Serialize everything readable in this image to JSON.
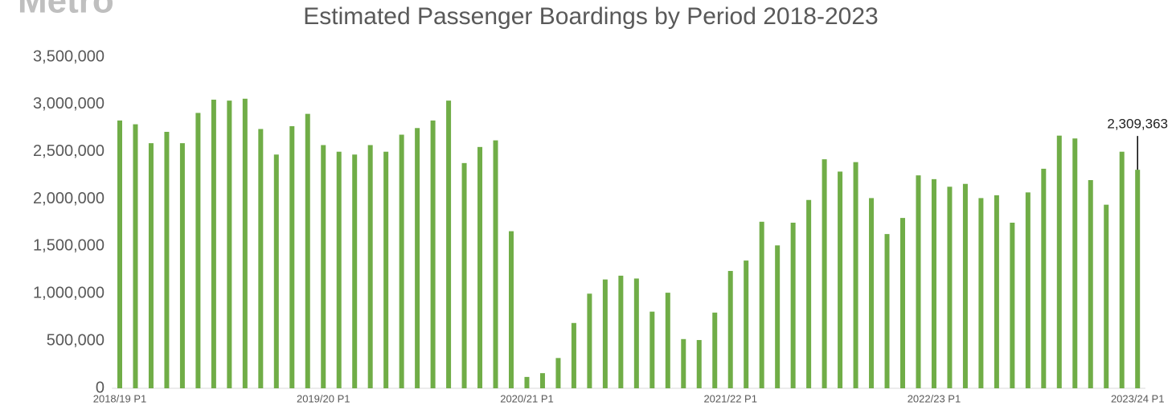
{
  "logo": "Metro",
  "chart_data": {
    "type": "bar",
    "title": "Estimated Passenger Boardings by Period 2018-2023",
    "categories": [
      "2018/19 P1",
      null,
      null,
      null,
      null,
      null,
      null,
      null,
      null,
      null,
      null,
      null,
      null,
      "2019/20 P1",
      null,
      null,
      null,
      null,
      null,
      null,
      null,
      null,
      null,
      null,
      null,
      null,
      "2020/21 P1",
      null,
      null,
      null,
      null,
      null,
      null,
      null,
      null,
      null,
      null,
      null,
      null,
      "2021/22 P1",
      null,
      null,
      null,
      null,
      null,
      null,
      null,
      null,
      null,
      null,
      null,
      null,
      "2022/23 P1",
      null,
      null,
      null,
      null,
      null,
      null,
      null,
      null,
      null,
      null,
      null,
      null,
      "2023/24 P1"
    ],
    "values": [
      2830000,
      2790000,
      2590000,
      2710000,
      2590000,
      2910000,
      3050000,
      3040000,
      3060000,
      2740000,
      2470000,
      2770000,
      2900000,
      2570000,
      2500000,
      2470000,
      2570000,
      2500000,
      2680000,
      2750000,
      2830000,
      3040000,
      2380000,
      2550000,
      2620000,
      1660000,
      120000,
      160000,
      320000,
      690000,
      1000000,
      1150000,
      1190000,
      1160000,
      810000,
      1010000,
      520000,
      510000,
      800000,
      1240000,
      1350000,
      1760000,
      1510000,
      1750000,
      1990000,
      2420000,
      2290000,
      2390000,
      2010000,
      1630000,
      1800000,
      2250000,
      2210000,
      2130000,
      2160000,
      2010000,
      2040000,
      1750000,
      2070000,
      2320000,
      2670000,
      2640000,
      2200000,
      1940000,
      2500000,
      2309363
    ],
    "value_labels": [
      null,
      null,
      null,
      null,
      null,
      null,
      null,
      null,
      null,
      null,
      null,
      null,
      null,
      null,
      null,
      null,
      null,
      null,
      null,
      null,
      null,
      null,
      null,
      null,
      null,
      null,
      null,
      null,
      null,
      null,
      null,
      null,
      null,
      null,
      null,
      null,
      null,
      null,
      null,
      null,
      null,
      null,
      null,
      null,
      null,
      null,
      null,
      null,
      null,
      null,
      null,
      null,
      null,
      null,
      null,
      null,
      null,
      null,
      null,
      null,
      null,
      null,
      null,
      null,
      null,
      "2,309,363"
    ],
    "color": "#70ad47",
    "ylim": [
      0,
      3500000
    ],
    "yticks": [
      0,
      {
        "value": 500000,
        "label": "500,000"
      },
      {
        "value": 1000000,
        "label": "1,000,000"
      },
      {
        "value": 1500000,
        "label": "1,500,000"
      },
      {
        "value": 2000000,
        "label": "2,000,000"
      },
      {
        "value": 2500000,
        "label": "2,500,000"
      },
      {
        "value": 3000000,
        "label": "3,000,000"
      },
      {
        "value": 3500000,
        "label": "3,500,000"
      }
    ],
    "grid": false
  }
}
